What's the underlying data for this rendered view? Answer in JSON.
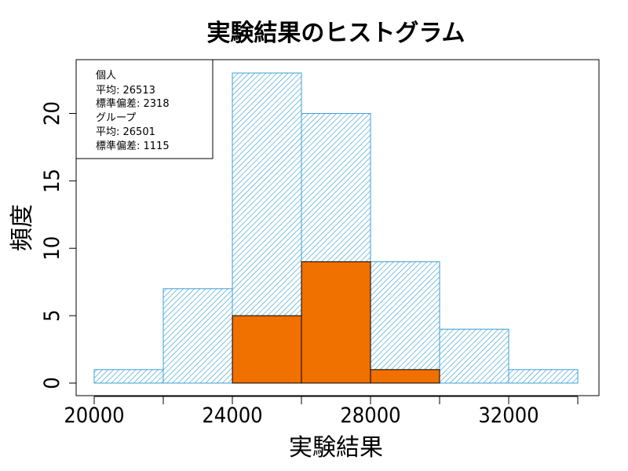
{
  "chart_data": {
    "type": "histogram",
    "title": "実験結果のヒストグラム",
    "xlabel": "実験結果",
    "ylabel": "頻度",
    "xlim": [
      19000,
      35000
    ],
    "ylim": [
      0,
      23
    ],
    "x_ticks": [
      20000,
      24000,
      28000,
      32000
    ],
    "x_minor_ticks": [
      22000,
      26000,
      30000,
      34000
    ],
    "y_ticks": [
      0,
      5,
      10,
      15,
      20
    ],
    "grid": false,
    "legend_position": "top-left",
    "series": [
      {
        "name": "個人",
        "color": "#3aa0d4",
        "fill": "hatched",
        "bins": [
          {
            "x0": 20000,
            "x1": 22000,
            "count": 1
          },
          {
            "x0": 22000,
            "x1": 24000,
            "count": 7
          },
          {
            "x0": 24000,
            "x1": 26000,
            "count": 23
          },
          {
            "x0": 26000,
            "x1": 28000,
            "count": 20
          },
          {
            "x0": 28000,
            "x1": 30000,
            "count": 9
          },
          {
            "x0": 30000,
            "x1": 32000,
            "count": 4
          },
          {
            "x0": 32000,
            "x1": 34000,
            "count": 1
          }
        ]
      },
      {
        "name": "グループ",
        "color": "#f07000",
        "fill": "solid",
        "bins": [
          {
            "x0": 24000,
            "x1": 26000,
            "count": 5
          },
          {
            "x0": 26000,
            "x1": 28000,
            "count": 9
          },
          {
            "x0": 28000,
            "x1": 30000,
            "count": 1
          }
        ]
      }
    ],
    "legend": {
      "lines": [
        "個人",
        "平均:  26513",
        "標準偏差:  2318",
        "グループ",
        "平均:  26501",
        "標準偏差:  1115"
      ]
    }
  }
}
